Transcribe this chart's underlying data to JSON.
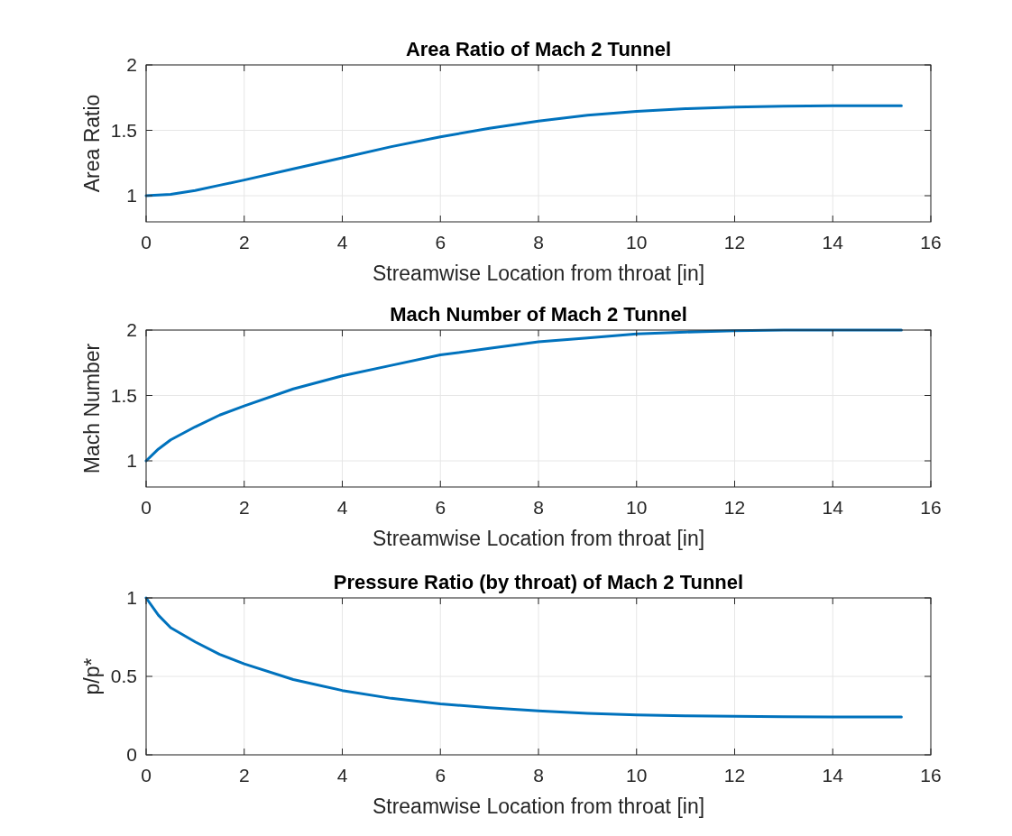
{
  "chart_data": [
    {
      "type": "line",
      "title": "Area Ratio of Mach 2 Tunnel",
      "xlabel": "Streamwise Location from throat [in]",
      "ylabel": "Area Ratio",
      "xlim": [
        0,
        16
      ],
      "xticks": [
        0,
        2,
        4,
        6,
        8,
        10,
        12,
        14,
        16
      ],
      "ylim": [
        0.8,
        2
      ],
      "yticks": [
        1,
        1.5,
        2
      ],
      "grid": true,
      "line_style": "solid",
      "series": [
        {
          "color": "#0072bd",
          "x": [
            0,
            0.5,
            1,
            1.5,
            2,
            3,
            4,
            5,
            6,
            7,
            8,
            9,
            10,
            11,
            12,
            13,
            14,
            15.4
          ],
          "values": [
            1,
            1.01,
            1.04,
            1.08,
            1.12,
            1.205,
            1.29,
            1.375,
            1.45,
            1.515,
            1.57,
            1.615,
            1.645,
            1.665,
            1.678,
            1.685,
            1.6875,
            1.6875
          ]
        }
      ]
    },
    {
      "type": "line",
      "title": "Mach Number of Mach 2 Tunnel",
      "xlabel": "Streamwise Location from throat [in]",
      "ylabel": "Mach Number",
      "xlim": [
        0,
        16
      ],
      "xticks": [
        0,
        2,
        4,
        6,
        8,
        10,
        12,
        14,
        16
      ],
      "ylim": [
        0.8,
        2
      ],
      "yticks": [
        1,
        1.5,
        2
      ],
      "grid": true,
      "line_style": "solid",
      "series": [
        {
          "color": "#0072bd",
          "x": [
            0,
            0.25,
            0.5,
            1,
            1.5,
            2,
            3,
            4,
            5,
            6,
            7,
            8,
            9,
            10,
            11,
            12,
            13,
            14,
            15.4
          ],
          "values": [
            1,
            1.09,
            1.16,
            1.26,
            1.35,
            1.42,
            1.55,
            1.65,
            1.73,
            1.81,
            1.86,
            1.91,
            1.94,
            1.97,
            1.985,
            1.995,
            2,
            2,
            2
          ]
        }
      ]
    },
    {
      "type": "line",
      "title": "Pressure Ratio (by throat) of Mach 2 Tunnel",
      "xlabel": "Streamwise Location from throat [in]",
      "ylabel": "p/p*",
      "xlim": [
        0,
        16
      ],
      "xticks": [
        0,
        2,
        4,
        6,
        8,
        10,
        12,
        14,
        16
      ],
      "ylim": [
        0,
        1
      ],
      "yticks": [
        0,
        0.5,
        1
      ],
      "grid": true,
      "line_style": "solid",
      "series": [
        {
          "color": "#0072bd",
          "x": [
            0,
            0.25,
            0.5,
            1,
            1.5,
            2,
            3,
            4,
            5,
            6,
            7,
            8,
            9,
            10,
            11,
            12,
            13,
            14,
            15.4
          ],
          "values": [
            1,
            0.89,
            0.81,
            0.72,
            0.64,
            0.58,
            0.48,
            0.41,
            0.36,
            0.325,
            0.3,
            0.28,
            0.265,
            0.255,
            0.249,
            0.245,
            0.243,
            0.242,
            0.242
          ]
        }
      ]
    }
  ]
}
